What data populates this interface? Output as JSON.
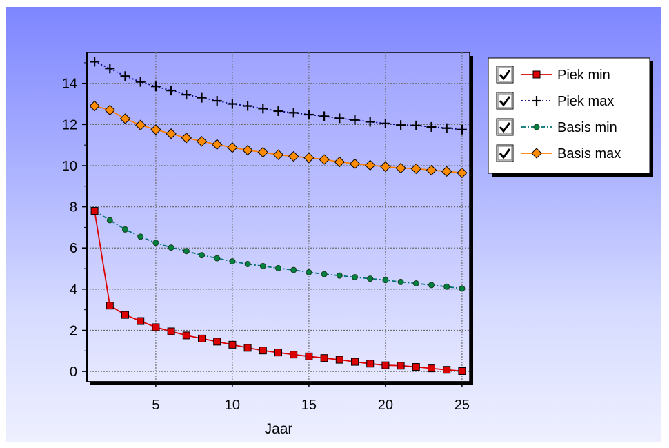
{
  "chart_data": {
    "type": "line",
    "xlabel": "Jaar",
    "ylabel": "",
    "xlim": [
      0.5,
      25.5
    ],
    "ylim": [
      -0.5,
      15.5
    ],
    "x_ticks": [
      5,
      10,
      15,
      20,
      25
    ],
    "y_ticks": [
      0,
      2,
      4,
      6,
      8,
      10,
      12,
      14
    ],
    "grid": true,
    "legend_position": "right",
    "x": [
      1,
      2,
      3,
      4,
      5,
      6,
      7,
      8,
      9,
      10,
      11,
      12,
      13,
      14,
      15,
      16,
      17,
      18,
      19,
      20,
      21,
      22,
      23,
      24,
      25
    ],
    "series": [
      {
        "name": "Piek min",
        "color": "#dd0000",
        "marker": "square",
        "marker_color": "#dd0000",
        "line_style": "solid",
        "checked": true,
        "values": [
          7.8,
          3.2,
          2.75,
          2.45,
          2.15,
          1.95,
          1.75,
          1.6,
          1.45,
          1.3,
          1.15,
          1.02,
          0.92,
          0.82,
          0.73,
          0.65,
          0.57,
          0.47,
          0.38,
          0.3,
          0.28,
          0.22,
          0.15,
          0.08,
          0.02
        ]
      },
      {
        "name": "Piek max",
        "color": "#000080",
        "marker": "plus",
        "marker_color": "#000000",
        "line_style": "dotted",
        "checked": true,
        "values": [
          15.05,
          14.72,
          14.35,
          14.07,
          13.85,
          13.65,
          13.45,
          13.3,
          13.15,
          13.0,
          12.9,
          12.77,
          12.65,
          12.57,
          12.48,
          12.4,
          12.3,
          12.22,
          12.13,
          12.05,
          11.97,
          11.95,
          11.88,
          11.82,
          11.75
        ]
      },
      {
        "name": "Basis min",
        "color": "#007070",
        "marker": "circle",
        "marker_color": "#008040",
        "line_style": "dashdot",
        "checked": true,
        "values": [
          7.8,
          7.35,
          6.9,
          6.55,
          6.25,
          6.02,
          5.85,
          5.65,
          5.5,
          5.35,
          5.22,
          5.12,
          5.02,
          4.93,
          4.82,
          4.73,
          4.66,
          4.58,
          4.51,
          4.44,
          4.35,
          4.28,
          4.2,
          4.12,
          4.03
        ]
      },
      {
        "name": "Basis max",
        "color": "#ff8000",
        "marker": "diamond",
        "marker_color": "#ff8c00",
        "line_style": "solid",
        "checked": true,
        "values": [
          12.9,
          12.7,
          12.28,
          11.97,
          11.75,
          11.55,
          11.35,
          11.18,
          11.03,
          10.88,
          10.75,
          10.65,
          10.53,
          10.45,
          10.38,
          10.3,
          10.18,
          10.09,
          10.02,
          9.95,
          9.88,
          9.85,
          9.78,
          9.72,
          9.65
        ]
      }
    ]
  }
}
